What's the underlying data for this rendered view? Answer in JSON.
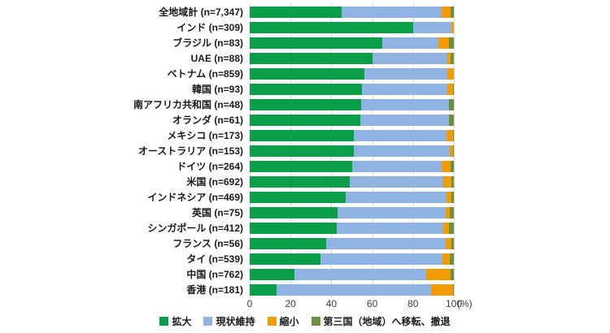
{
  "chart_data": {
    "type": "bar",
    "orientation": "horizontal",
    "stacked": true,
    "value_unit": "%",
    "title": "",
    "categories": [
      "全地域計 (n=7,347)",
      "インド (n=309)",
      "ブラジル (n=83)",
      "UAE (n=88)",
      "ベトナム (n=859)",
      "韓国 (n=93)",
      "南アフリカ共和国 (n=48)",
      "オランダ (n=61)",
      "メキシコ (n=173)",
      "オーストラリア (n=153)",
      "ドイツ (n=264)",
      "米国 (n=692)",
      "インドネシア (n=469)",
      "英国 (n=75)",
      "シンガポール (n=412)",
      "フランス (n=56)",
      "タイ (n=539)",
      "中国 (n=762)",
      "香港 (n=181)"
    ],
    "series": [
      {
        "name": "拡大",
        "slug": "expand",
        "color": "#0a9e49",
        "values": [
          45,
          80,
          65,
          60,
          56,
          55,
          54.5,
          54,
          51,
          51,
          50,
          49,
          47,
          43,
          42.5,
          37.5,
          34.5,
          22,
          13
        ]
      },
      {
        "name": "現状維持",
        "slug": "maintain",
        "color": "#8fb4e3",
        "values": [
          49,
          19,
          27.5,
          37,
          41,
          42,
          43,
          43.5,
          45.5,
          47,
          44,
          46,
          49.5,
          53,
          52.5,
          58.5,
          60,
          64.5,
          76
        ]
      },
      {
        "name": "縮小",
        "slug": "shrink",
        "color": "#f29c00",
        "values": [
          4.5,
          1,
          5,
          1.5,
          3,
          2.5,
          0,
          0,
          3,
          1.5,
          4.5,
          4,
          2.5,
          2,
          2.5,
          3,
          3.5,
          12,
          10.5
        ]
      },
      {
        "name": "第三国（地域）へ移転、撤退",
        "slug": "relocate-withdraw",
        "color": "#6e8f3f",
        "values": [
          1.5,
          0,
          2.5,
          1.5,
          0,
          0.5,
          2.5,
          2.5,
          0.5,
          0.5,
          1.5,
          1,
          1,
          2,
          2.5,
          1,
          2,
          1.5,
          0.5
        ]
      }
    ],
    "x_axis": {
      "ticks": [
        0,
        20,
        40,
        60,
        80,
        100
      ],
      "range": [
        0,
        100
      ],
      "unit_label": "(%)"
    },
    "legend_position": "bottom",
    "grid": true,
    "grid_color": "#d9d9d9",
    "text_color": "#1a1a1a"
  }
}
